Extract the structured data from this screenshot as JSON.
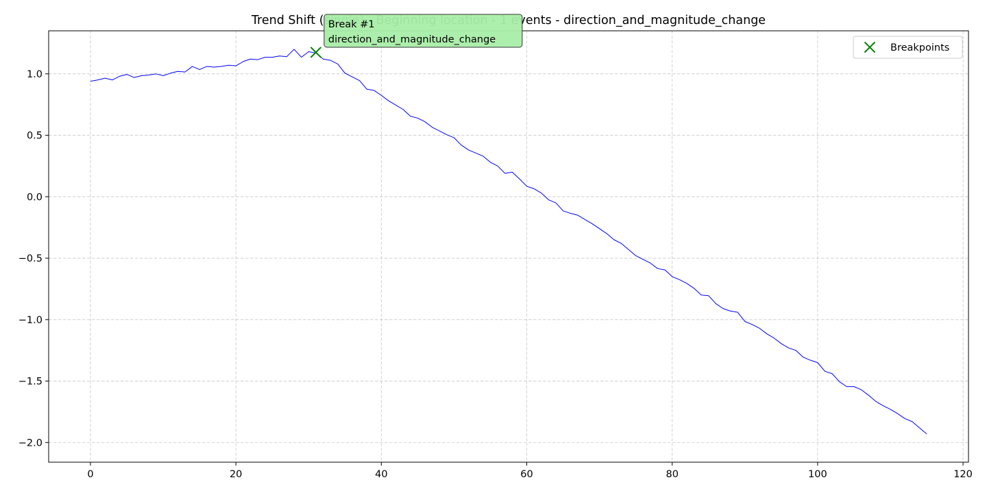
{
  "chart_data": {
    "type": "line",
    "title": "Trend Shift (single) - Beginning location - 1 events - direction_and_magnitude_change",
    "xlabel": "",
    "ylabel": "",
    "xlim": [
      -5.75,
      120.75
    ],
    "ylim": [
      -2.16,
      1.35
    ],
    "xticks": [
      0,
      20,
      40,
      60,
      80,
      100,
      120
    ],
    "yticks": [
      1.0,
      0.5,
      0.0,
      -0.5,
      -1.0,
      -1.5,
      -2.0
    ],
    "xtick_labels": [
      "0",
      "20",
      "40",
      "60",
      "80",
      "100",
      "120"
    ],
    "ytick_labels": [
      "1.0",
      "0.5",
      "0.0",
      "−0.5",
      "−1.0",
      "−1.5",
      "−2.0"
    ],
    "grid": true,
    "legend_position": "top-right",
    "series": [
      {
        "color": "#0000ff",
        "x": [
          0,
          1,
          2,
          3,
          4,
          5,
          6,
          7,
          8,
          9,
          10,
          11,
          12,
          13,
          14,
          15,
          16,
          17,
          18,
          19,
          20,
          21,
          22,
          23,
          24,
          25,
          26,
          27,
          28,
          29,
          30,
          31,
          32,
          33,
          34,
          35,
          36,
          37,
          38,
          39,
          40,
          41,
          42,
          43,
          44,
          45,
          46,
          47,
          48,
          49,
          50,
          51,
          52,
          53,
          54,
          55,
          56,
          57,
          58,
          59,
          60,
          61,
          62,
          63,
          64,
          65,
          66,
          67,
          68,
          69,
          70,
          71,
          72,
          73,
          74,
          75,
          76,
          77,
          78,
          79,
          80,
          81,
          82,
          83,
          84,
          85,
          86,
          87,
          88,
          89,
          90,
          91,
          92,
          93,
          94,
          95,
          96,
          97,
          98,
          99,
          100,
          101,
          102,
          103,
          104,
          105,
          106,
          107,
          108,
          109,
          110,
          111,
          112,
          113,
          114,
          115
        ],
        "y": [
          0.94,
          0.95,
          0.965,
          0.95,
          0.98,
          0.995,
          0.97,
          0.985,
          0.99,
          1.0,
          0.985,
          1.005,
          1.02,
          1.015,
          1.06,
          1.035,
          1.06,
          1.055,
          1.06,
          1.07,
          1.065,
          1.1,
          1.12,
          1.115,
          1.135,
          1.135,
          1.145,
          1.14,
          1.2,
          1.135,
          1.18,
          1.17,
          1.12,
          1.11,
          1.08,
          1.005,
          0.975,
          0.945,
          0.875,
          0.865,
          0.825,
          0.78,
          0.745,
          0.71,
          0.655,
          0.64,
          0.61,
          0.565,
          0.535,
          0.505,
          0.48,
          0.42,
          0.38,
          0.355,
          0.33,
          0.28,
          0.25,
          0.19,
          0.2,
          0.145,
          0.085,
          0.065,
          0.03,
          -0.025,
          -0.05,
          -0.115,
          -0.135,
          -0.15,
          -0.185,
          -0.22,
          -0.26,
          -0.3,
          -0.35,
          -0.38,
          -0.43,
          -0.48,
          -0.51,
          -0.54,
          -0.585,
          -0.595,
          -0.65,
          -0.675,
          -0.705,
          -0.745,
          -0.8,
          -0.805,
          -0.87,
          -0.91,
          -0.93,
          -0.94,
          -1.015,
          -1.04,
          -1.07,
          -1.115,
          -1.15,
          -1.195,
          -1.23,
          -1.25,
          -1.305,
          -1.33,
          -1.35,
          -1.42,
          -1.44,
          -1.505,
          -1.545,
          -1.545,
          -1.57,
          -1.615,
          -1.665,
          -1.7,
          -1.73,
          -1.765,
          -1.805,
          -1.83,
          -1.88,
          -1.93
        ]
      }
    ],
    "breakpoints": {
      "name": "Breakpoints",
      "color": "#008000",
      "marker": "x",
      "points": [
        {
          "x": 31,
          "y": 1.175
        }
      ]
    },
    "annotations": [
      {
        "x": 31,
        "y": 1.175,
        "lines": [
          "Break #1",
          "direction_and_magnitude_change"
        ],
        "box_color": "#a8eda8",
        "border_color": "#333333"
      }
    ]
  }
}
